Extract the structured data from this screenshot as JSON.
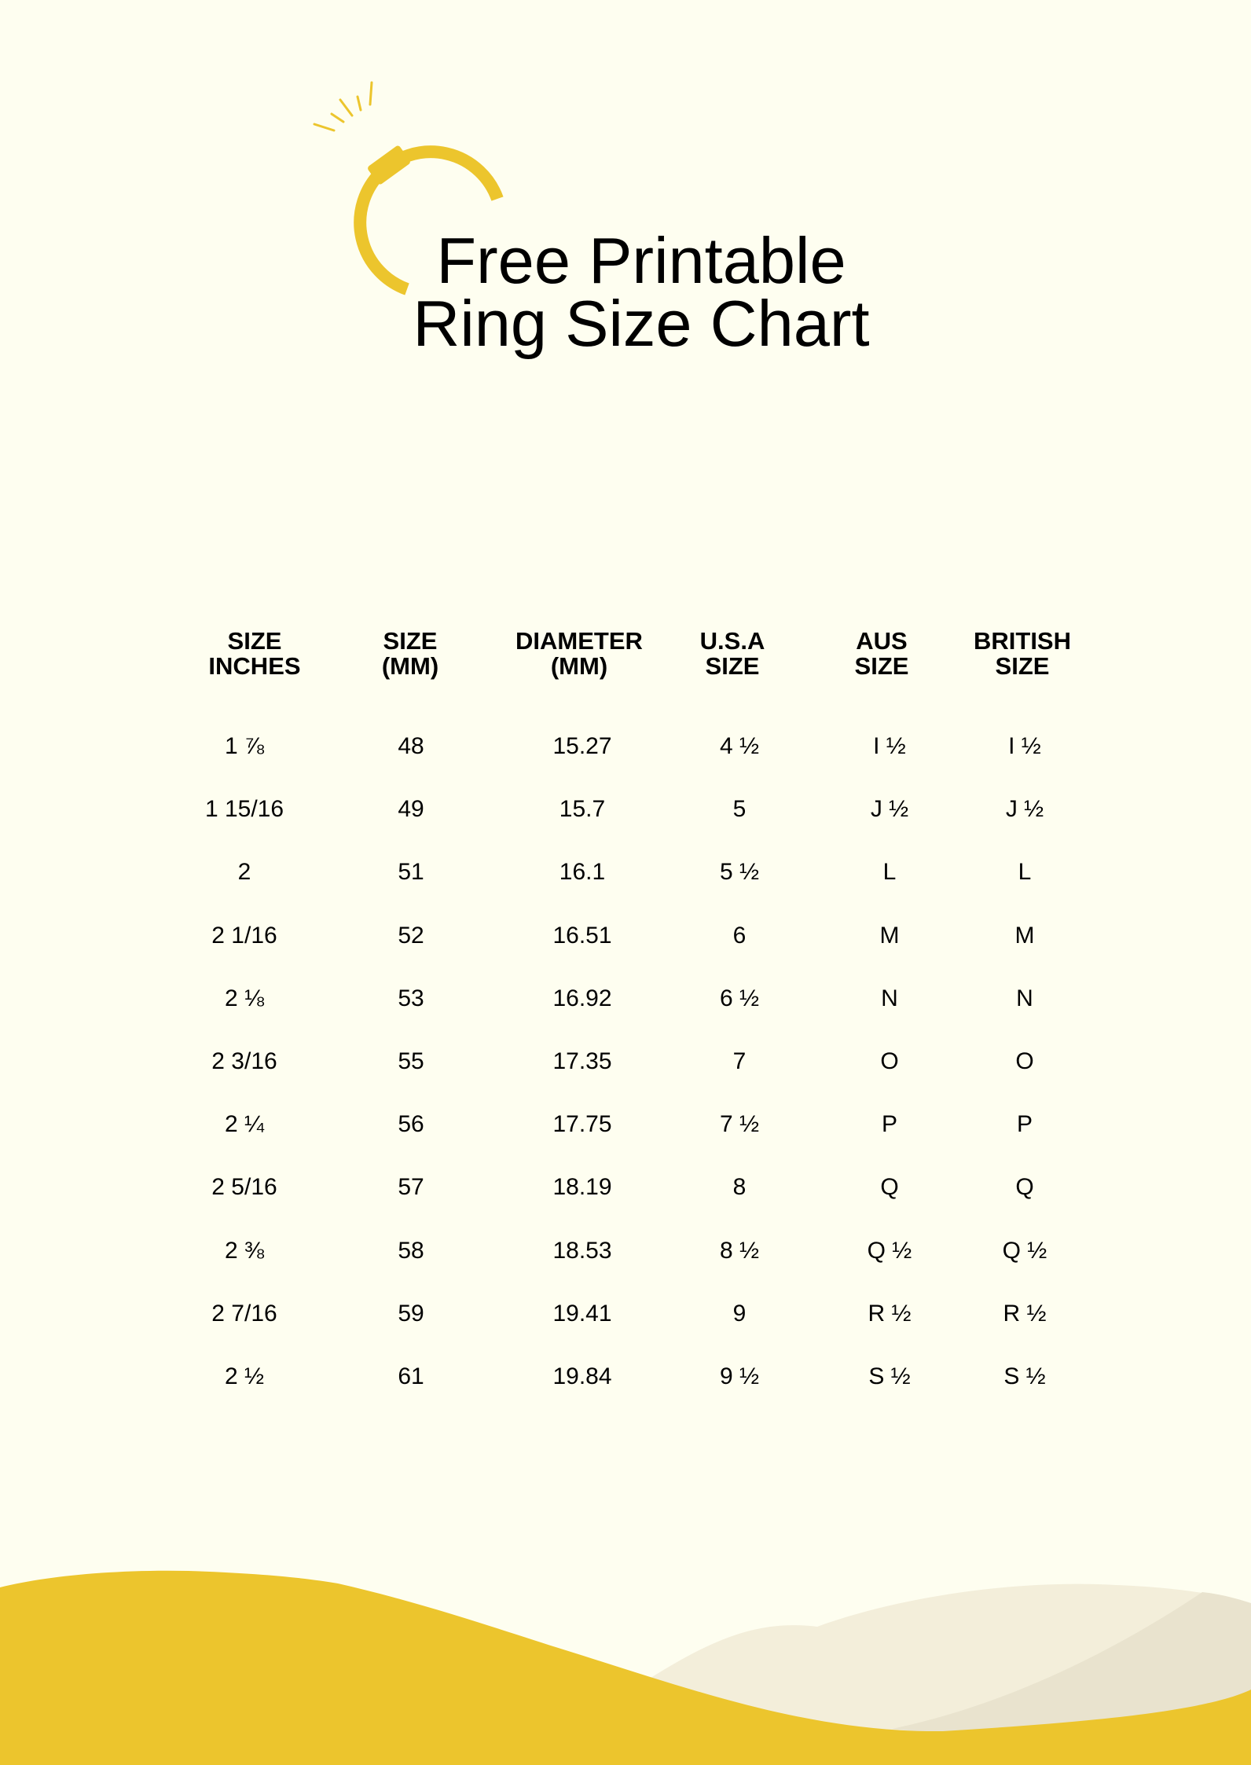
{
  "title": {
    "line1": "Free Printable",
    "line2": "Ring Size Chart"
  },
  "colors": {
    "background": "#FEFEF0",
    "accent": "#ECC52D",
    "wave_light": "#F3EEDA",
    "wave_dark": "#E9E3CE"
  },
  "icons": {
    "logo": "ring-icon"
  },
  "table": {
    "headers": [
      {
        "line1": "SIZE",
        "line2": "INCHES"
      },
      {
        "line1": "SIZE",
        "line2": "(MM)"
      },
      {
        "line1": "DIAMETER",
        "line2": "(MM)"
      },
      {
        "line1": "U.S.A",
        "line2": "SIZE"
      },
      {
        "line1": "AUS",
        "line2": "SIZE"
      },
      {
        "line1": "BRITISH",
        "line2": "SIZE"
      }
    ],
    "rows": [
      [
        "1 ⅞",
        "48",
        "15.27",
        "4 ½",
        "I ½",
        "I ½"
      ],
      [
        "1 15/16",
        "49",
        "15.7",
        "5",
        "J ½",
        "J ½"
      ],
      [
        "2",
        "51",
        "16.1",
        "5 ½",
        "L",
        "L"
      ],
      [
        "2 1/16",
        "52",
        "16.51",
        "6",
        "M",
        "M"
      ],
      [
        "2 ⅛",
        "53",
        "16.92",
        "6 ½",
        "N",
        "N"
      ],
      [
        "2 3/16",
        "55",
        "17.35",
        "7",
        "O",
        "O"
      ],
      [
        "2 ¼",
        "56",
        "17.75",
        "7 ½",
        "P",
        "P"
      ],
      [
        "2 5/16",
        "57",
        "18.19",
        "8",
        "Q",
        "Q"
      ],
      [
        "2 ⅜",
        "58",
        "18.53",
        "8 ½",
        "Q ½",
        "Q ½"
      ],
      [
        "2 7/16",
        "59",
        "19.41",
        "9",
        "R ½",
        "R ½"
      ],
      [
        "2 ½",
        "61",
        "19.84",
        "9 ½",
        "S ½",
        "S ½"
      ]
    ]
  }
}
